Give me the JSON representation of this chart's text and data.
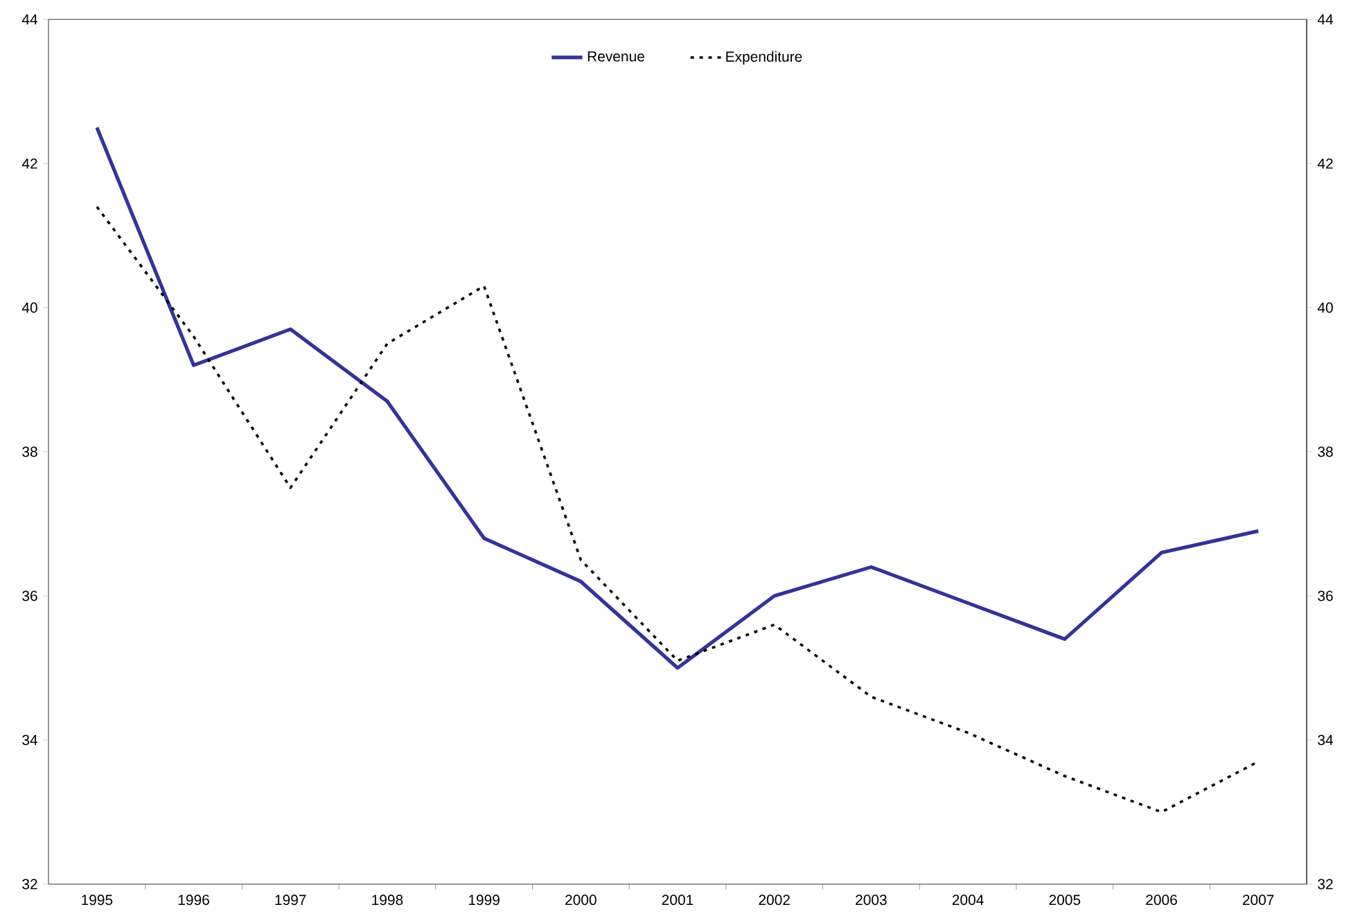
{
  "chart_data": {
    "type": "line",
    "categories": [
      "1995",
      "1996",
      "1997",
      "1998",
      "1999",
      "2000",
      "2001",
      "2002",
      "2003",
      "2004",
      "2005",
      "2006",
      "2007"
    ],
    "series": [
      {
        "name": "Revenue",
        "color": "#333399",
        "line_style": "solid",
        "values": [
          42.5,
          39.2,
          39.7,
          38.7,
          36.8,
          36.2,
          35.0,
          36.0,
          36.4,
          35.9,
          35.4,
          36.6,
          36.9
        ]
      },
      {
        "name": "Expenditure",
        "color": "#000000",
        "line_style": "dotted",
        "values": [
          41.4,
          39.6,
          37.5,
          39.5,
          40.3,
          36.5,
          35.1,
          35.6,
          34.6,
          34.1,
          33.5,
          33.0,
          33.7
        ]
      }
    ],
    "ylim": [
      32,
      44
    ],
    "yticks": [
      32,
      34,
      36,
      38,
      40,
      42,
      44
    ],
    "y2lim": [
      32,
      44
    ],
    "y2ticks": [
      32,
      34,
      36,
      38,
      40,
      42,
      44
    ],
    "grid": false,
    "legend": "top",
    "marker": "none"
  }
}
